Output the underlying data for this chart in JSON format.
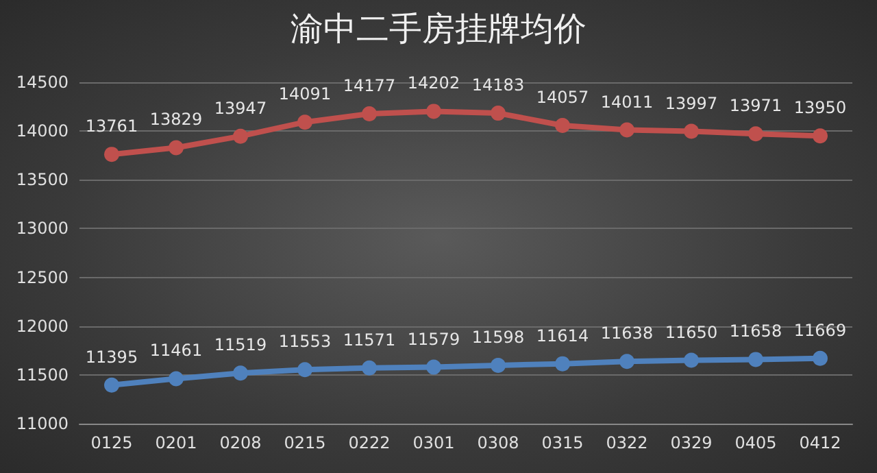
{
  "chart_data": {
    "type": "line",
    "title": "渝中二手房挂牌均价",
    "categories": [
      "0125",
      "0201",
      "0208",
      "0215",
      "0222",
      "0301",
      "0308",
      "0315",
      "0322",
      "0329",
      "0405",
      "0412"
    ],
    "series": [
      {
        "color": "#c0504d",
        "values": [
          13761,
          13829,
          13947,
          14091,
          14177,
          14202,
          14183,
          14057,
          14011,
          13997,
          13971,
          13950
        ]
      },
      {
        "color": "#4f81bd",
        "values": [
          11395,
          11461,
          11519,
          11553,
          11571,
          11579,
          11598,
          11614,
          11638,
          11650,
          11658,
          11669
        ]
      }
    ],
    "ylim": [
      11000,
      14500
    ],
    "yticks": [
      11000,
      11500,
      12000,
      12500,
      13000,
      13500,
      14000,
      14500
    ],
    "grid": "y",
    "marker": "circle",
    "line_style": "solid",
    "data_labels": true
  }
}
